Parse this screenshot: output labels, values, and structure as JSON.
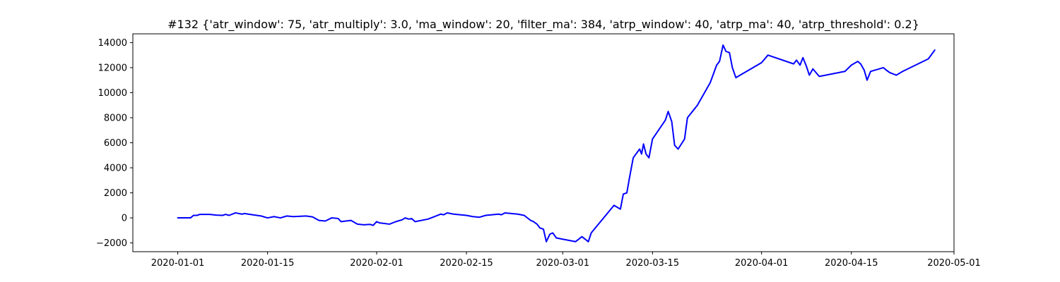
{
  "chart_data": {
    "type": "line",
    "title": "#132 {'atr_window': 75, 'atr_multiply': 3.0, 'ma_window': 20, 'filter_ma': 384, 'atrp_window': 40, 'atrp_ma': 40, 'atrp_threshold': 0.2}",
    "xlabel": "",
    "ylabel": "",
    "xlim": [
      "2019-12-25",
      "2020-05-01"
    ],
    "ylim": [
      -2700,
      14700
    ],
    "grid": false,
    "legend": "none",
    "x_ticks": [
      "2020-01-01",
      "2020-01-15",
      "2020-02-01",
      "2020-02-15",
      "2020-03-01",
      "2020-03-15",
      "2020-04-01",
      "2020-04-15",
      "2020-05-01"
    ],
    "y_ticks": [
      -2000,
      0,
      2000,
      4000,
      6000,
      8000,
      10000,
      12000,
      14000
    ],
    "series": [
      {
        "color": "#0000ff",
        "points": [
          [
            "2020-01-01",
            0
          ],
          [
            "2020-01-01",
            0
          ],
          [
            "2020-01-02",
            0
          ],
          [
            "2020-01-03",
            0
          ],
          [
            "2020-01-03",
            200
          ],
          [
            "2020-01-04",
            200
          ],
          [
            "2020-01-04",
            280
          ],
          [
            "2020-01-06",
            280
          ],
          [
            "2020-01-07",
            220
          ],
          [
            "2020-01-08",
            200
          ],
          [
            "2020-01-08",
            280
          ],
          [
            "2020-01-09",
            200
          ],
          [
            "2020-01-10",
            400
          ],
          [
            "2020-01-11",
            300
          ],
          [
            "2020-01-11",
            350
          ],
          [
            "2020-01-12",
            300
          ],
          [
            "2020-01-14",
            150
          ],
          [
            "2020-01-15",
            0
          ],
          [
            "2020-01-16",
            100
          ],
          [
            "2020-01-17",
            0
          ],
          [
            "2020-01-18",
            150
          ],
          [
            "2020-01-19",
            100
          ],
          [
            "2020-01-21",
            150
          ],
          [
            "2020-01-22",
            80
          ],
          [
            "2020-01-23",
            -200
          ],
          [
            "2020-01-24",
            -250
          ],
          [
            "2020-01-25",
            0
          ],
          [
            "2020-01-26",
            -50
          ],
          [
            "2020-01-26",
            -300
          ],
          [
            "2020-01-28",
            -200
          ],
          [
            "2020-01-29",
            -500
          ],
          [
            "2020-01-30",
            -550
          ],
          [
            "2020-01-31",
            -520
          ],
          [
            "2020-01-31",
            -600
          ],
          [
            "2020-02-01",
            -300
          ],
          [
            "2020-02-01",
            -400
          ],
          [
            "2020-02-03",
            -500
          ],
          [
            "2020-02-04",
            -300
          ],
          [
            "2020-02-05",
            -150
          ],
          [
            "2020-02-05",
            0
          ],
          [
            "2020-02-06",
            -100
          ],
          [
            "2020-02-06",
            -50
          ],
          [
            "2020-02-07",
            -300
          ],
          [
            "2020-02-09",
            -100
          ],
          [
            "2020-02-10",
            100
          ],
          [
            "2020-02-11",
            300
          ],
          [
            "2020-02-11",
            250
          ],
          [
            "2020-02-12",
            400
          ],
          [
            "2020-02-13",
            300
          ],
          [
            "2020-02-15",
            200
          ],
          [
            "2020-02-16",
            100
          ],
          [
            "2020-02-17",
            50
          ],
          [
            "2020-02-18",
            200
          ],
          [
            "2020-02-19",
            250
          ],
          [
            "2020-02-20",
            300
          ],
          [
            "2020-02-20",
            250
          ],
          [
            "2020-02-21",
            400
          ],
          [
            "2020-02-23",
            300
          ],
          [
            "2020-02-24",
            200
          ],
          [
            "2020-02-25",
            -200
          ],
          [
            "2020-02-25",
            -300
          ],
          [
            "2020-02-26",
            -500
          ],
          [
            "2020-02-26",
            -800
          ],
          [
            "2020-02-27",
            -900
          ],
          [
            "2020-02-27",
            -1900
          ],
          [
            "2020-02-28",
            -1300
          ],
          [
            "2020-02-28",
            -1200
          ],
          [
            "2020-02-29",
            -1600
          ],
          [
            "2020-03-01",
            -1700
          ],
          [
            "2020-03-03",
            -1900
          ],
          [
            "2020-03-04",
            -1500
          ],
          [
            "2020-03-05",
            -1900
          ],
          [
            "2020-03-05",
            -1200
          ],
          [
            "2020-03-09",
            1000
          ],
          [
            "2020-03-10",
            700
          ],
          [
            "2020-03-10",
            1900
          ],
          [
            "2020-03-11",
            2000
          ],
          [
            "2020-03-11",
            3300
          ],
          [
            "2020-03-12",
            4800
          ],
          [
            "2020-03-13",
            5500
          ],
          [
            "2020-03-13",
            5100
          ],
          [
            "2020-03-13",
            5900
          ],
          [
            "2020-03-14",
            5100
          ],
          [
            "2020-03-14",
            4800
          ],
          [
            "2020-03-15",
            6300
          ],
          [
            "2020-03-17",
            7800
          ],
          [
            "2020-03-17",
            8500
          ],
          [
            "2020-03-18",
            7700
          ],
          [
            "2020-03-18",
            5800
          ],
          [
            "2020-03-19",
            5500
          ],
          [
            "2020-03-20",
            6300
          ],
          [
            "2020-03-20",
            8000
          ],
          [
            "2020-03-22",
            9000
          ],
          [
            "2020-03-24",
            10800
          ],
          [
            "2020-03-25",
            12200
          ],
          [
            "2020-03-25",
            12500
          ],
          [
            "2020-03-26",
            13800
          ],
          [
            "2020-03-26",
            13300
          ],
          [
            "2020-03-27",
            13200
          ],
          [
            "2020-03-27",
            12000
          ],
          [
            "2020-03-28",
            11200
          ],
          [
            "2020-03-30",
            11800
          ],
          [
            "2020-04-01",
            12400
          ],
          [
            "2020-04-02",
            13000
          ],
          [
            "2020-04-06",
            12300
          ],
          [
            "2020-04-06",
            12600
          ],
          [
            "2020-04-07",
            12200
          ],
          [
            "2020-04-07",
            12800
          ],
          [
            "2020-04-08",
            12100
          ],
          [
            "2020-04-08",
            11400
          ],
          [
            "2020-04-09",
            11900
          ],
          [
            "2020-04-10",
            11300
          ],
          [
            "2020-04-14",
            11700
          ],
          [
            "2020-04-15",
            12200
          ],
          [
            "2020-04-16",
            12500
          ],
          [
            "2020-04-16",
            12300
          ],
          [
            "2020-04-17",
            11800
          ],
          [
            "2020-04-17",
            11000
          ],
          [
            "2020-04-18",
            11700
          ],
          [
            "2020-04-20",
            12000
          ],
          [
            "2020-04-20",
            11800
          ],
          [
            "2020-04-21",
            11600
          ],
          [
            "2020-04-22",
            11400
          ],
          [
            "2020-04-23",
            11700
          ],
          [
            "2020-04-27",
            12700
          ],
          [
            "2020-04-28",
            13400
          ]
        ]
      }
    ]
  }
}
